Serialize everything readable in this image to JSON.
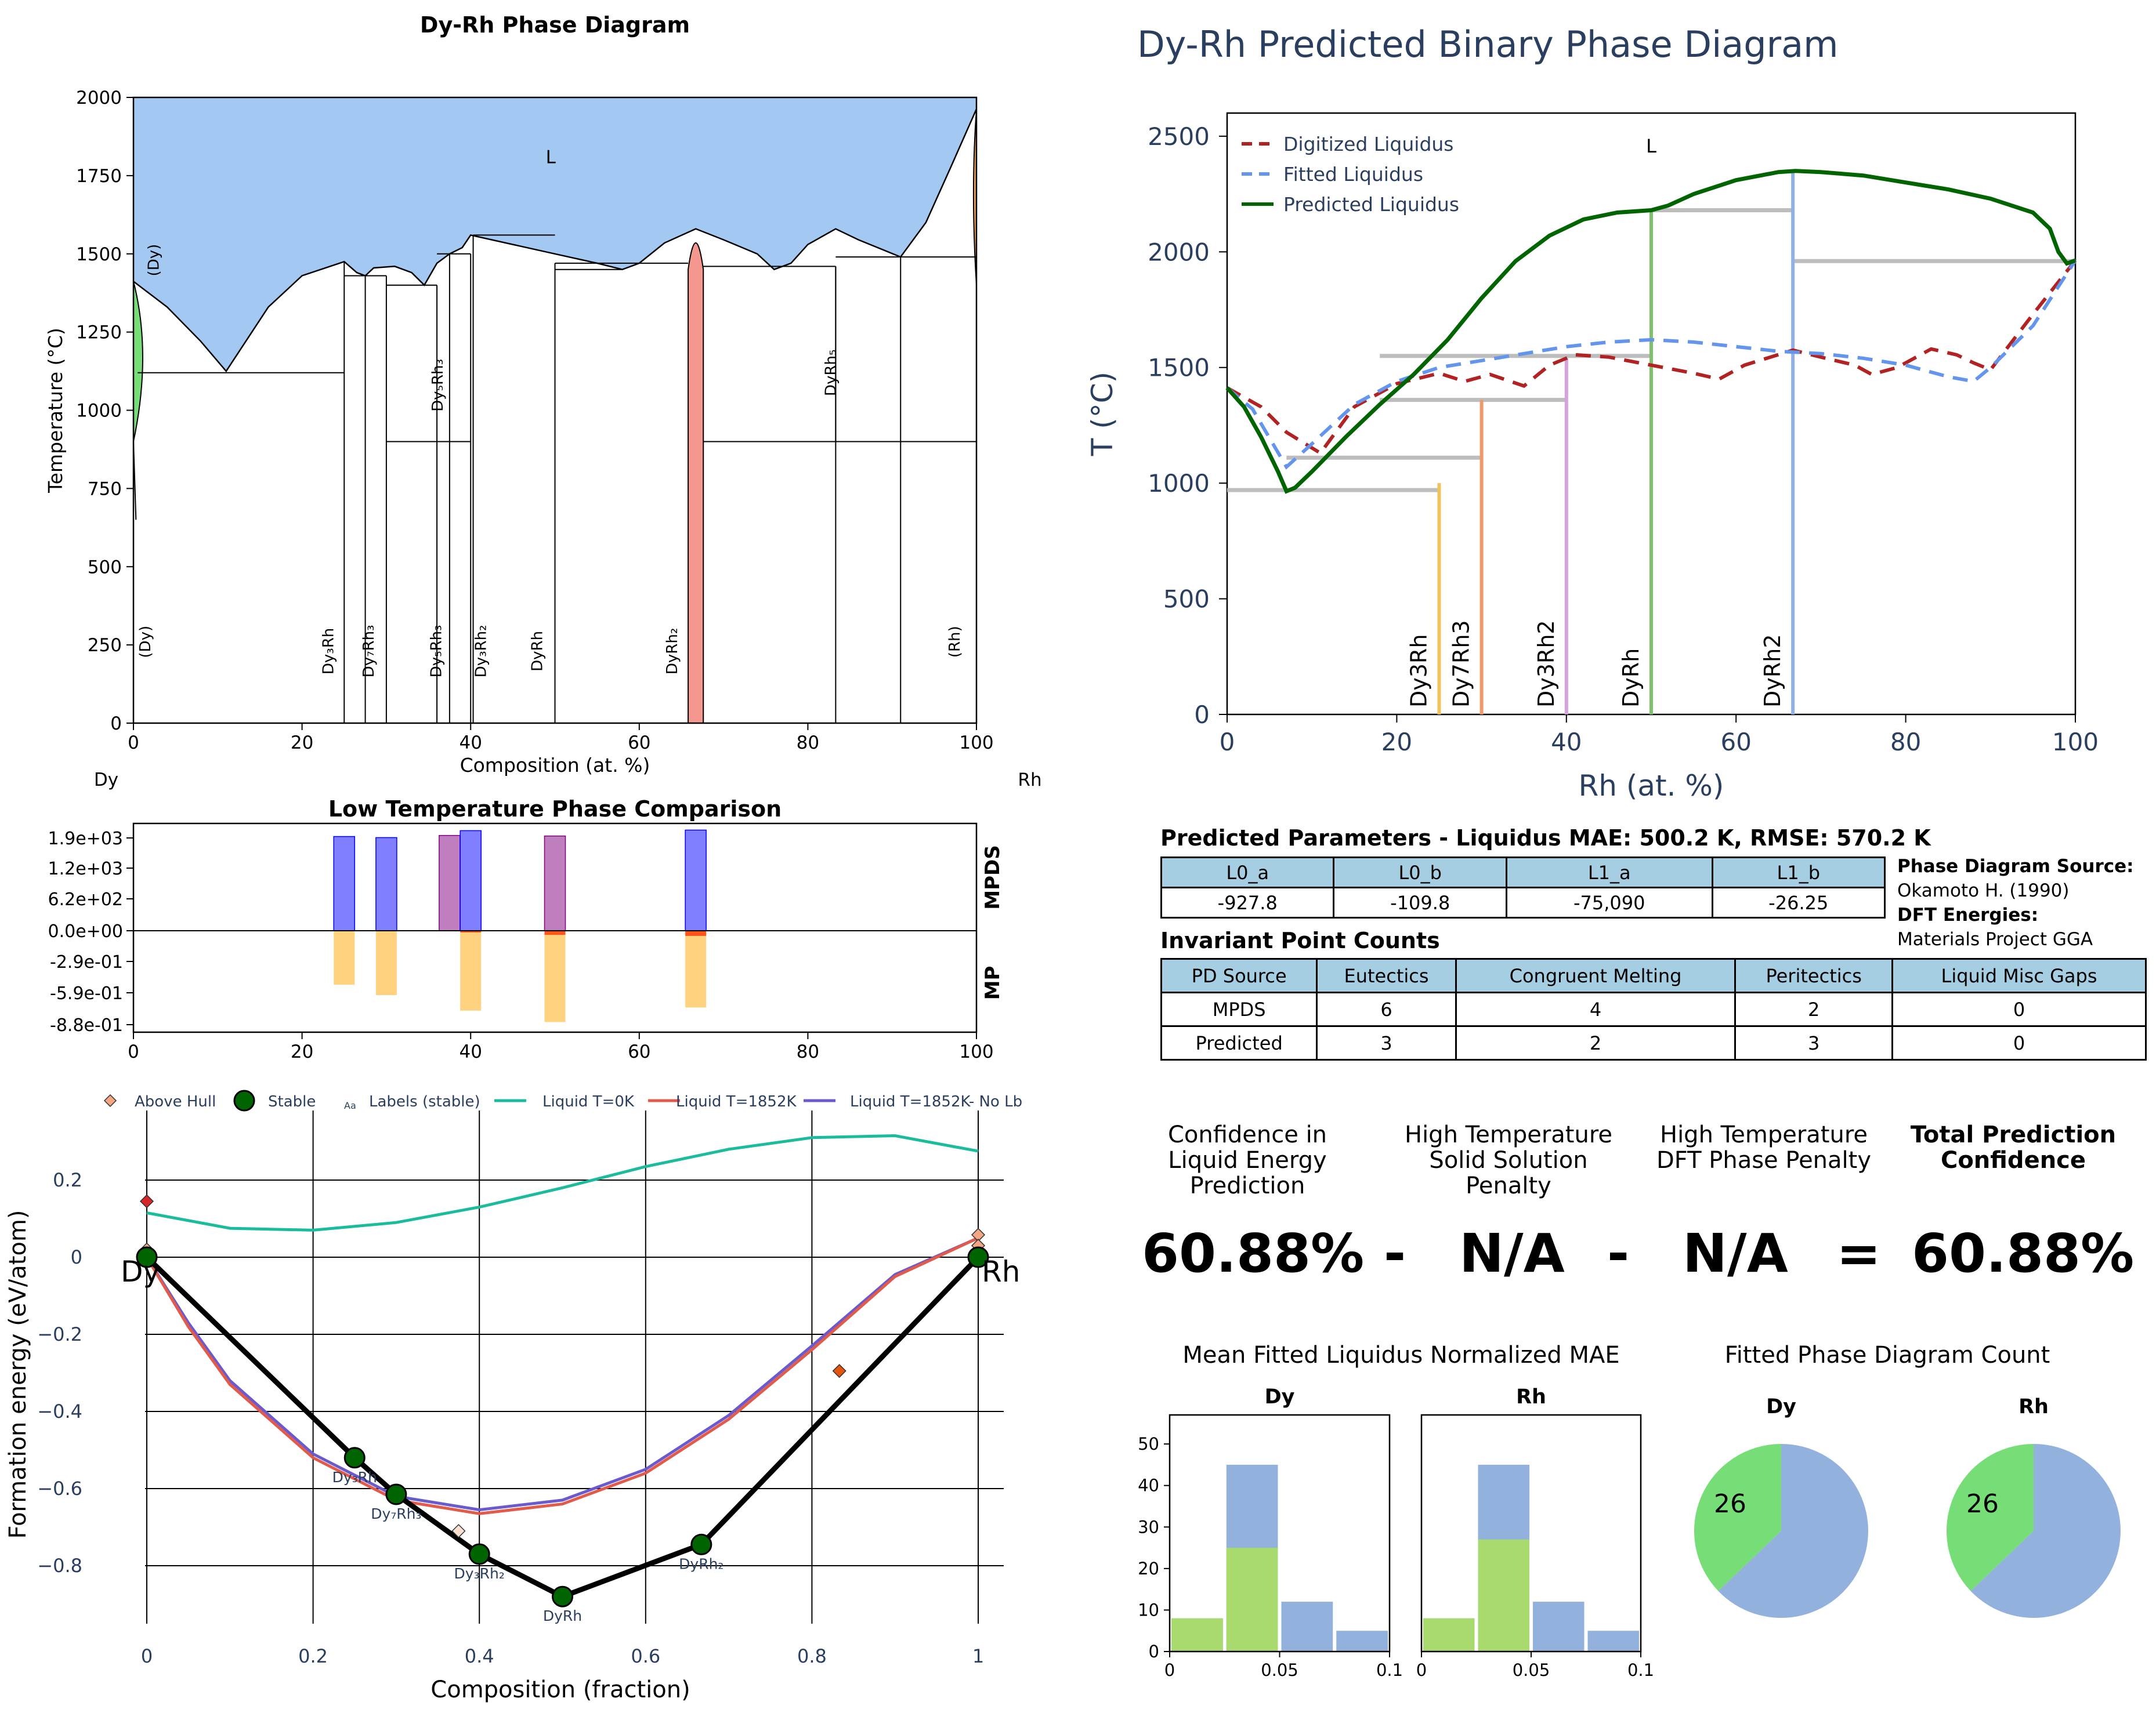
{
  "chart_data": [
    {
      "type": "area",
      "title": "Dy-Rh Phase Diagram",
      "xlabel": "Composition (at. %)",
      "ylabel": "Temperature (°C)",
      "xlim": [
        0,
        100
      ],
      "ylim": [
        0,
        2000
      ],
      "xticks": [
        "0",
        "20",
        "40",
        "60",
        "80",
        "100"
      ],
      "yticks": [
        "0",
        "250",
        "500",
        "750",
        "1000",
        "1250",
        "1500",
        "1750",
        "2000"
      ],
      "left_element": "Dy",
      "right_element": "Rh",
      "liquid_label": "L",
      "liquidus": [
        [
          0,
          1412
        ],
        [
          4,
          1330
        ],
        [
          8,
          1220
        ],
        [
          11,
          1125
        ],
        [
          16,
          1330
        ],
        [
          20,
          1430
        ],
        [
          25,
          1475
        ],
        [
          26.5,
          1440
        ],
        [
          27.5,
          1430
        ],
        [
          28.5,
          1455
        ],
        [
          31,
          1460
        ],
        [
          33,
          1440
        ],
        [
          34.5,
          1400
        ],
        [
          36,
          1470
        ],
        [
          37.5,
          1500
        ],
        [
          39,
          1520
        ],
        [
          40,
          1560
        ],
        [
          45,
          1530
        ],
        [
          50,
          1500
        ],
        [
          55,
          1470
        ],
        [
          58,
          1450
        ],
        [
          60,
          1470
        ],
        [
          63,
          1535
        ],
        [
          66.7,
          1580
        ],
        [
          70,
          1545
        ],
        [
          74,
          1500
        ],
        [
          76,
          1450
        ],
        [
          78,
          1470
        ],
        [
          80,
          1530
        ],
        [
          83.3,
          1580
        ],
        [
          86,
          1545
        ],
        [
          91,
          1490
        ],
        [
          94,
          1600
        ],
        [
          97,
          1780
        ],
        [
          100,
          1963
        ]
      ],
      "phase_labels": [
        {
          "text": "(Dy)",
          "x": 3,
          "y": 1480
        },
        {
          "text": "Dy₅Rh₃",
          "x": 36.7,
          "y": 1080
        },
        {
          "text": "DyRh₅",
          "x": 83.3,
          "y": 1120
        },
        {
          "text": "(Dy)",
          "x": 2,
          "y": 260
        },
        {
          "text": "Dy₃Rh",
          "x": 23.7,
          "y": 230
        },
        {
          "text": "Dy₇Rh₃",
          "x": 28.5,
          "y": 230
        },
        {
          "text": "Dy₅Rh₃",
          "x": 36.5,
          "y": 230
        },
        {
          "text": "Dy₃Rh₂",
          "x": 41.8,
          "y": 230
        },
        {
          "text": "DyRh",
          "x": 48.5,
          "y": 230
        },
        {
          "text": "DyRh₂",
          "x": 64.5,
          "y": 230
        },
        {
          "text": "(Rh)",
          "x": 98,
          "y": 260
        }
      ]
    },
    {
      "type": "bar",
      "title": "Low Temperature Phase Comparison",
      "xticks": [
        "0",
        "20",
        "40",
        "60",
        "80",
        "100"
      ],
      "yticks": [
        "1.9e+03",
        "1.2e+03",
        "6.2e+02",
        "0.0e+00",
        "-2.9e-01",
        "-5.9e-01",
        "-8.8e-01"
      ],
      "upper_label": "MPDS",
      "lower_label": "MP",
      "mpds": [
        {
          "x": 25,
          "value": 1760,
          "color": "#0000ff"
        },
        {
          "x": 30,
          "value": 1740,
          "color": "#0000ff"
        },
        {
          "x": 37.5,
          "value": 1780,
          "color": "#800080"
        },
        {
          "x": 40,
          "value": 1870,
          "color": "#0000ff"
        },
        {
          "x": 50,
          "value": 1770,
          "color": "#800080"
        },
        {
          "x": 66.7,
          "value": 1880,
          "color": "#0000ff"
        }
      ],
      "mp": [
        {
          "x": 25,
          "value": -0.52,
          "hull": 0,
          "color": "#ffa500"
        },
        {
          "x": 30,
          "value": -0.62,
          "hull": 0,
          "color": "#ffa500"
        },
        {
          "x": 40,
          "value": -0.77,
          "hull": 0.02,
          "color": "#ffa500"
        },
        {
          "x": 50,
          "value": -0.88,
          "hull": 0.12,
          "color": "#ffa500"
        },
        {
          "x": 66.7,
          "value": -0.74,
          "hull": 0.16,
          "color": "#ffa500"
        }
      ]
    },
    {
      "type": "line",
      "title": "Dy-Rh Predicted Binary Phase Diagram",
      "xlabel": "Rh (at. %)",
      "ylabel": "T (°C)",
      "xlim": [
        0,
        100
      ],
      "ylim": [
        0,
        2600
      ],
      "xticks": [
        "0",
        "20",
        "40",
        "60",
        "80",
        "100"
      ],
      "yticks": [
        "0",
        "500",
        "1000",
        "1500",
        "2000",
        "2500"
      ],
      "liquid_label": "L",
      "series": [
        {
          "name": "Digitized Liquidus",
          "color": "#b22222",
          "dash": "dashed",
          "x": [
            0,
            4,
            7,
            11,
            15,
            20,
            25,
            28,
            31,
            35,
            38,
            41,
            45,
            50,
            55,
            58,
            61,
            66.7,
            70,
            74,
            76,
            79,
            83,
            86,
            88,
            90,
            95,
            100
          ],
          "y": [
            1412,
            1330,
            1220,
            1130,
            1330,
            1430,
            1475,
            1440,
            1470,
            1420,
            1510,
            1555,
            1545,
            1510,
            1475,
            1450,
            1510,
            1575,
            1545,
            1510,
            1470,
            1500,
            1580,
            1555,
            1520,
            1490,
            1730,
            1963
          ]
        },
        {
          "name": "Fitted Liquidus",
          "color": "#6495ed",
          "dash": "dashed",
          "x": [
            0,
            3,
            7,
            10,
            15,
            20,
            25,
            30,
            35,
            40,
            45,
            50,
            55,
            60,
            65,
            70,
            75,
            80,
            85,
            88,
            90,
            95,
            100
          ],
          "y": [
            1412,
            1320,
            1070,
            1170,
            1340,
            1440,
            1500,
            1530,
            1560,
            1590,
            1610,
            1620,
            1610,
            1590,
            1570,
            1560,
            1540,
            1510,
            1460,
            1440,
            1500,
            1680,
            1963
          ]
        },
        {
          "name": "Predicted Liquidus",
          "color": "#006400",
          "dash": "solid",
          "x": [
            0,
            2,
            4,
            6,
            7,
            8,
            10,
            14,
            18,
            22,
            26,
            30,
            34,
            38,
            42,
            46,
            50,
            52,
            55,
            60,
            65,
            67,
            70,
            75,
            80,
            85,
            90,
            95,
            97,
            98,
            99,
            100
          ],
          "y": [
            1412,
            1330,
            1200,
            1050,
            965,
            980,
            1050,
            1200,
            1340,
            1470,
            1620,
            1800,
            1960,
            2070,
            2140,
            2170,
            2180,
            2200,
            2250,
            2310,
            2345,
            2350,
            2345,
            2330,
            2300,
            2270,
            2230,
            2170,
            2100,
            2000,
            1950,
            1963
          ]
        }
      ],
      "compounds": [
        {
          "name": "Dy3Rh",
          "x": 25,
          "top": 1000,
          "color": "#f0c35a"
        },
        {
          "name": "Dy7Rh3",
          "x": 30,
          "top": 1360,
          "color": "#f09a6c"
        },
        {
          "name": "Dy3Rh2",
          "x": 40,
          "top": 1540,
          "color": "#d7a0e0"
        },
        {
          "name": "DyRh",
          "x": 50,
          "top": 2180,
          "color": "#7fc06a"
        },
        {
          "name": "DyRh2",
          "x": 66.7,
          "top": 2350,
          "color": "#90b0e8"
        }
      ],
      "invariant_lines": [
        {
          "x1": 0,
          "x2": 25,
          "y": 970
        },
        {
          "x1": 7,
          "x2": 30,
          "y": 1110
        },
        {
          "x1": 18,
          "x2": 40,
          "y": 1360
        },
        {
          "x1": 18,
          "x2": 50,
          "y": 1550
        },
        {
          "x1": 50,
          "x2": 66.7,
          "y": 2180
        },
        {
          "x1": 66.7,
          "x2": 100,
          "y": 1960
        }
      ]
    },
    {
      "type": "scatter",
      "xlabel": "Composition (fraction)",
      "ylabel": "Formation energy (eV/atom)",
      "xlim": [
        0,
        1
      ],
      "ylim": [
        -1,
        0.3
      ],
      "xticks": [
        "0",
        "0.2",
        "0.4",
        "0.6",
        "0.8",
        "1"
      ],
      "yticks": [
        "0.2",
        "0",
        "−0.2",
        "−0.4",
        "−0.6",
        "−0.8"
      ],
      "legend": [
        "Above Hull",
        "Stable",
        "Labels (stable)",
        "Liquid T=0K",
        "Liquid T=1852K",
        "Liquid T=1852K- No Lb"
      ],
      "legend_aa": "Aa",
      "end_labels": [
        "Dy",
        "Rh"
      ],
      "stable": [
        {
          "x": 0,
          "y": 0
        },
        {
          "x": 0.25,
          "y": -0.52,
          "label": "Dy₃Rh"
        },
        {
          "x": 0.3,
          "y": -0.615,
          "label": "Dy₇Rh₃"
        },
        {
          "x": 0.4,
          "y": -0.77,
          "label": "Dy₃Rh₂"
        },
        {
          "x": 0.5,
          "y": -0.88,
          "label": "DyRh"
        },
        {
          "x": 0.667,
          "y": -0.745,
          "label": "DyRh₂"
        },
        {
          "x": 1,
          "y": 0
        }
      ],
      "above_hull": [
        {
          "x": 0,
          "y": 0.145,
          "color": "#d62728"
        },
        {
          "x": 0,
          "y": 0.02,
          "color": "#f4a582"
        },
        {
          "x": 0.375,
          "y": -0.71,
          "color": "#fde0d0"
        },
        {
          "x": 0.833,
          "y": -0.295,
          "color": "#e6550d"
        },
        {
          "x": 1,
          "y": 0.058,
          "color": "#f4a582"
        },
        {
          "x": 1,
          "y": 0.03,
          "color": "#f4a582"
        }
      ],
      "liquid_0K": {
        "x": [
          0,
          0.1,
          0.2,
          0.3,
          0.4,
          0.5,
          0.6,
          0.7,
          0.8,
          0.9,
          1
        ],
        "y": [
          0.115,
          0.075,
          0.07,
          0.09,
          0.13,
          0.18,
          0.235,
          0.28,
          0.31,
          0.315,
          0.275
        ]
      },
      "liquid_1852K": {
        "x": [
          0,
          0.05,
          0.1,
          0.2,
          0.3,
          0.4,
          0.5,
          0.6,
          0.7,
          0.8,
          0.9,
          1
        ],
        "y": [
          0,
          -0.18,
          -0.33,
          -0.52,
          -0.63,
          -0.665,
          -0.64,
          -0.56,
          -0.42,
          -0.24,
          -0.05,
          0.05
        ]
      },
      "liquid_1852K_no_lb": {
        "x": [
          0,
          0.05,
          0.1,
          0.2,
          0.3,
          0.4,
          0.5,
          0.6,
          0.7,
          0.8,
          0.9,
          1
        ],
        "y": [
          0,
          -0.17,
          -0.32,
          -0.51,
          -0.62,
          -0.655,
          -0.63,
          -0.55,
          -0.41,
          -0.23,
          -0.045,
          0.05
        ]
      }
    },
    {
      "type": "bar",
      "title": "Mean Fitted Liquidus Normalized MAE",
      "panels": [
        {
          "name": "Dy",
          "bins": [
            0,
            0.025,
            0.05,
            0.075,
            0.1
          ],
          "total": [
            8,
            45,
            12,
            5
          ],
          "selected": [
            8,
            25,
            0,
            0
          ]
        },
        {
          "name": "Rh",
          "bins": [
            0,
            0.025,
            0.05,
            0.075,
            0.1
          ],
          "total": [
            8,
            45,
            12,
            5
          ],
          "selected": [
            8,
            27,
            0,
            0
          ]
        }
      ],
      "yticks": [
        "0",
        "10",
        "20",
        "30",
        "40",
        "50"
      ],
      "xticks": [
        "0",
        "0.05",
        "0.1"
      ],
      "ylim": [
        0,
        57
      ]
    },
    {
      "type": "pie",
      "title": "Fitted Phase Diagram Count",
      "panels": [
        {
          "name": "Dy",
          "values": [
            26,
            44
          ],
          "label": "26",
          "colors": [
            "#77dd77",
            "#92b1dc"
          ]
        },
        {
          "name": "Rh",
          "values": [
            26,
            44
          ],
          "label": "26",
          "colors": [
            "#77dd77",
            "#92b1dc"
          ]
        }
      ]
    }
  ],
  "params": {
    "title": "Predicted Parameters - Liquidus MAE: 500.2 K, RMSE: 570.2 K",
    "headers": [
      "L0_a",
      "L0_b",
      "L1_a",
      "L1_b"
    ],
    "values": [
      "-927.8",
      "-109.8",
      "-75,090",
      "-26.25"
    ]
  },
  "source": {
    "pd_label": "Phase Diagram Source:",
    "pd_value": "Okamoto H. (1990)",
    "dft_label": "DFT Energies:",
    "dft_value": "Materials Project GGA"
  },
  "invariants": {
    "title": "Invariant Point Counts",
    "headers": [
      "PD Source",
      "Eutectics",
      "Congruent Melting",
      "Peritectics",
      "Liquid Misc Gaps"
    ],
    "rows": [
      [
        "MPDS",
        "6",
        "4",
        "2",
        "0"
      ],
      [
        "Predicted",
        "3",
        "2",
        "3",
        "0"
      ]
    ]
  },
  "confidence": {
    "labels": [
      "Confidence in Liquid Energy Prediction",
      "High Temperature Solid Solution Penalty",
      "High Temperature DFT Phase Penalty",
      "Total Prediction Confidence"
    ],
    "values": [
      "60.88%",
      "N/A",
      "N/A",
      "60.88%"
    ],
    "ops": [
      "-",
      "-",
      "="
    ]
  },
  "colors": {
    "liquid": "#a3c9f2",
    "dy_solid": "#77dd77",
    "rh_solid": "#f4a460",
    "dyrh2": "#f4978e"
  }
}
